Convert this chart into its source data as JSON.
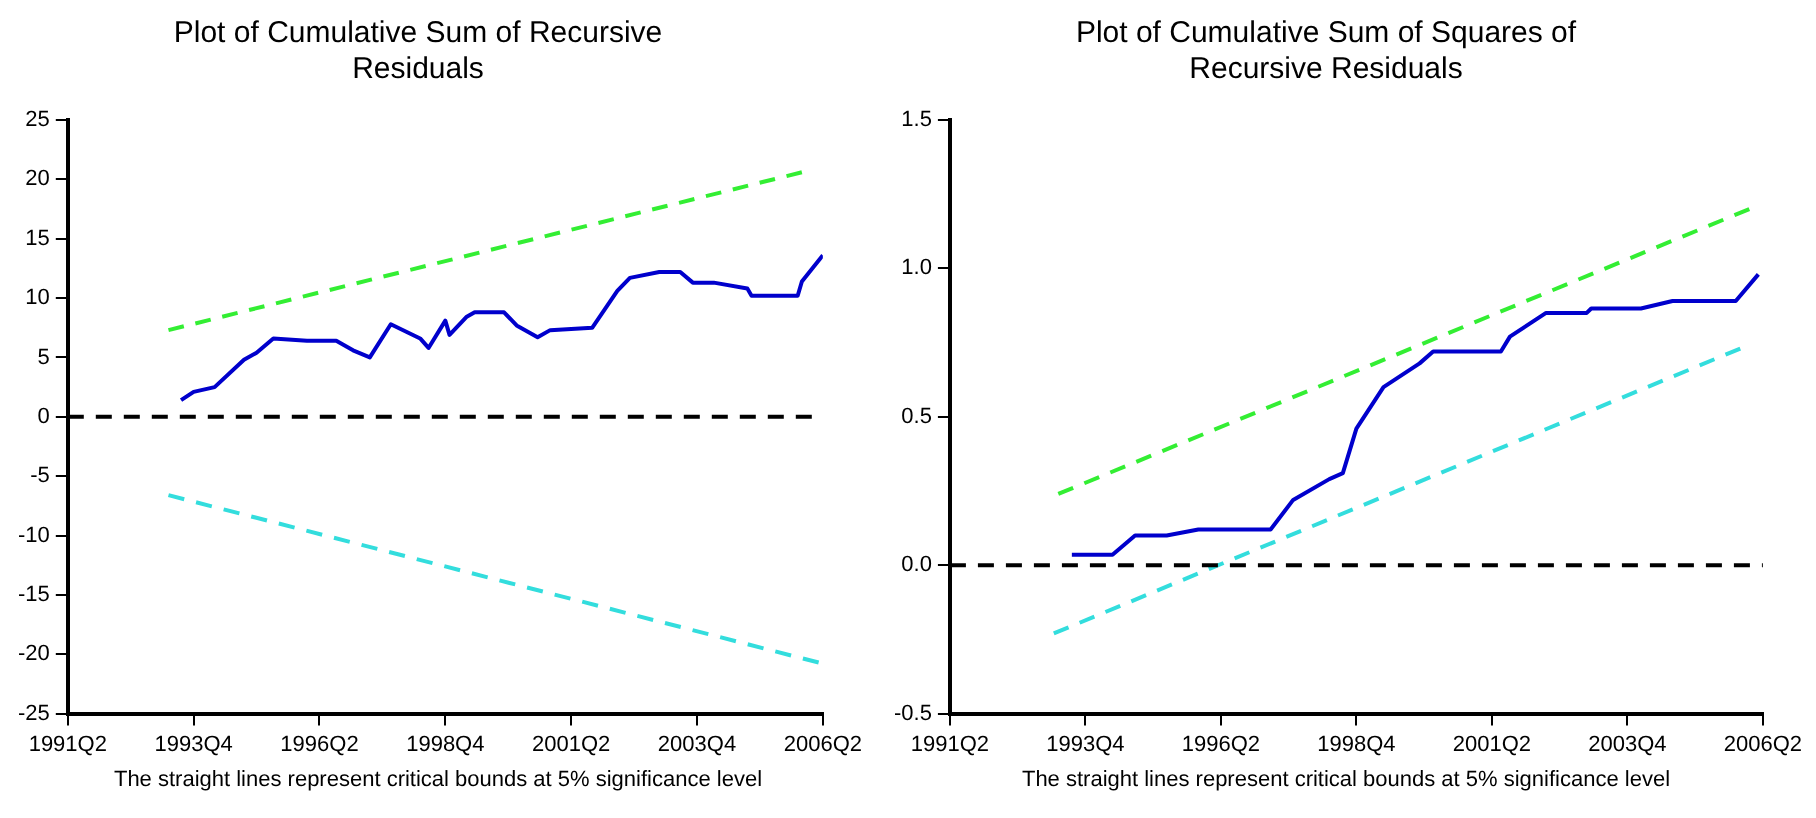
{
  "chart_data": [
    {
      "type": "line",
      "title": "Plot of Cumulative Sum of Recursive Residuals",
      "annotations": [
        "The straight lines represent critical bounds at 5% significance level"
      ],
      "xlim": [
        "1991-04",
        "2006-04"
      ],
      "xticks": [
        {
          "value": "1991-04",
          "label": "1991Q2"
        },
        {
          "value": "1993-10",
          "label": "1993Q4"
        },
        {
          "value": "1996-04",
          "label": "1996Q2"
        },
        {
          "value": "1998-10",
          "label": "1998Q4"
        },
        {
          "value": "2001-04",
          "label": "2001Q2"
        },
        {
          "value": "2003-10",
          "label": "2003Q4"
        },
        {
          "value": "2006-04",
          "label": "2006Q2"
        }
      ],
      "ylim": [
        -25,
        25
      ],
      "yticks": [
        -25,
        -20,
        -15,
        -10,
        -5,
        0,
        5,
        10,
        15,
        20,
        25
      ],
      "grid": false,
      "legend": false,
      "marker": "none",
      "ref_lines": [
        {
          "axis": "y",
          "value": 0,
          "color": "#000000",
          "line_style": "dashed"
        }
      ],
      "series": [
        {
          "color": "#0000cc",
          "line_style": "solid",
          "x": [
            "1993-07",
            "1993-10",
            "1994-03",
            "1994-10",
            "1995-01",
            "1995-05",
            "1996-01",
            "1996-08",
            "1996-12",
            "1997-04",
            "1997-09",
            "1998-04",
            "1998-06",
            "1998-10",
            "1998-11",
            "1999-03",
            "1999-05",
            "1999-12",
            "2000-03",
            "2000-08",
            "2000-11",
            "2001-09",
            "2002-03",
            "2002-06",
            "2003-01",
            "2003-06",
            "2003-09",
            "2004-02",
            "2004-10",
            "2004-11",
            "2005-10",
            "2005-11",
            "2006-04"
          ],
          "values": [
            1.4,
            2.1,
            2.5,
            4.8,
            5.4,
            6.6,
            6.4,
            6.4,
            5.6,
            5.0,
            7.8,
            6.6,
            5.8,
            8.1,
            6.9,
            8.4,
            8.8,
            8.8,
            7.7,
            6.7,
            7.3,
            7.5,
            10.6,
            11.7,
            12.2,
            12.2,
            11.3,
            11.3,
            10.8,
            10.2,
            10.2,
            11.4,
            13.6
          ]
        },
        {
          "color": "#33ee33",
          "line_style": "dashed",
          "x": [
            "1993-04",
            "2005-11"
          ],
          "values": [
            7.3,
            20.6
          ]
        },
        {
          "color": "#33dddd",
          "line_style": "dashed",
          "x": [
            "1993-04",
            "2006-03"
          ],
          "values": [
            -6.6,
            -20.7
          ]
        }
      ]
    },
    {
      "type": "line",
      "title": "Plot of Cumulative Sum of Squares of Recursive Residuals",
      "annotations": [
        "The straight lines represent critical bounds at 5% significance level"
      ],
      "xlim": [
        "1991-04",
        "2006-04"
      ],
      "xticks": [
        {
          "value": "1991-04",
          "label": "1991Q2"
        },
        {
          "value": "1993-10",
          "label": "1993Q4"
        },
        {
          "value": "1996-04",
          "label": "1996Q2"
        },
        {
          "value": "1998-10",
          "label": "1998Q4"
        },
        {
          "value": "2001-04",
          "label": "2001Q2"
        },
        {
          "value": "2003-10",
          "label": "2003Q4"
        },
        {
          "value": "2006-04",
          "label": "2006Q2"
        }
      ],
      "ylim": [
        -0.5,
        1.5
      ],
      "yticks": [
        {
          "value": -0.5,
          "label": "-0.5"
        },
        {
          "value": 0,
          "label": "0.0"
        },
        {
          "value": 0.5,
          "label": "0.5"
        },
        {
          "value": 1,
          "label": "1.0"
        },
        {
          "value": 1.5,
          "label": "1.5"
        }
      ],
      "grid": false,
      "legend": false,
      "marker": "none",
      "ref_lines": [
        {
          "axis": "y",
          "value": 0,
          "color": "#000000",
          "line_style": "dashed"
        }
      ],
      "series": [
        {
          "color": "#0000cc",
          "line_style": "solid",
          "x": [
            "1993-07",
            "1994-04",
            "1994-09",
            "1995-04",
            "1995-11",
            "1997-03",
            "1997-08",
            "1998-04",
            "1998-07",
            "1998-10",
            "1999-04",
            "1999-12",
            "2000-03",
            "2001-06",
            "2001-08",
            "2002-04",
            "2003-01",
            "2003-02",
            "2004-01",
            "2004-08",
            "2005-10",
            "2006-03"
          ],
          "values": [
            0.035,
            0.035,
            0.1,
            0.1,
            0.12,
            0.12,
            0.22,
            0.29,
            0.31,
            0.46,
            0.6,
            0.68,
            0.72,
            0.72,
            0.77,
            0.85,
            0.85,
            0.865,
            0.865,
            0.89,
            0.89,
            0.98
          ]
        },
        {
          "color": "#33ee33",
          "line_style": "dashed",
          "x": [
            "1993-04",
            "2006-01"
          ],
          "values": [
            0.24,
            1.2
          ]
        },
        {
          "color": "#33dddd",
          "line_style": "dashed",
          "x": [
            "1993-03",
            "2005-11"
          ],
          "values": [
            -0.23,
            0.73
          ]
        }
      ]
    }
  ]
}
